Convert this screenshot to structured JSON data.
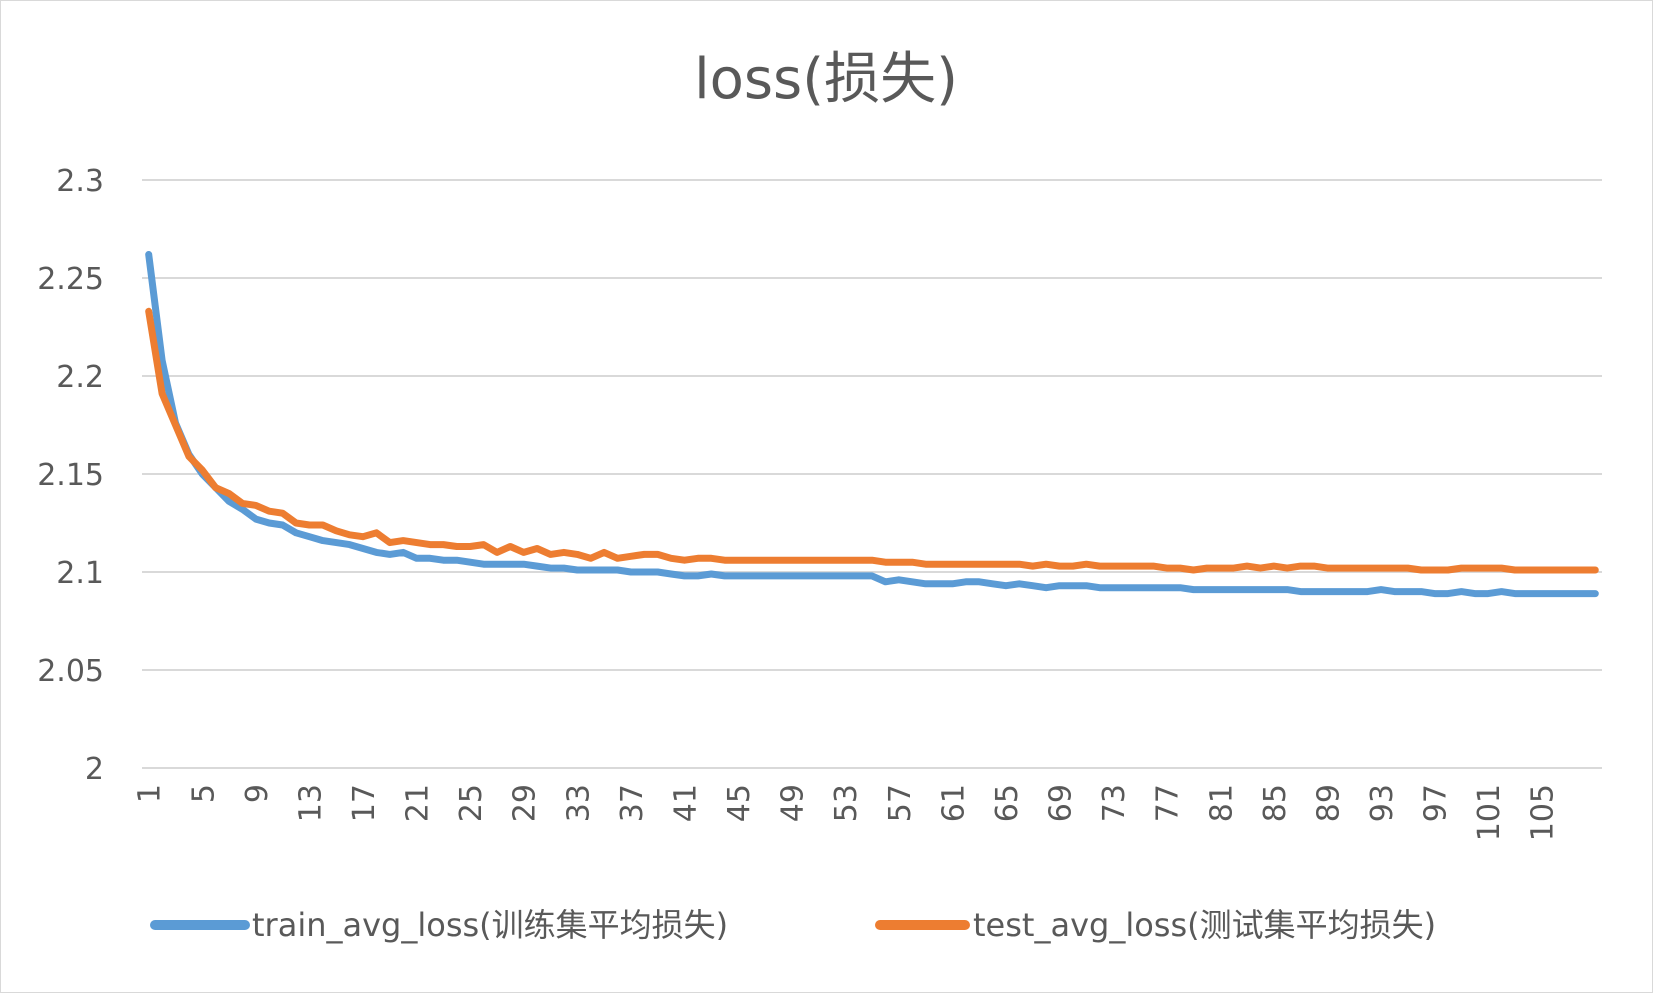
{
  "chart_data": {
    "type": "line",
    "title": "loss(损失)",
    "xlabel": "",
    "ylabel": "",
    "ylim": [
      2,
      2.3
    ],
    "yticks": [
      "2",
      "2.05",
      "2.1",
      "2.15",
      "2.2",
      "2.25",
      "2.3"
    ],
    "x_tick_labels": [
      "1",
      "5",
      "9",
      "13",
      "17",
      "21",
      "25",
      "29",
      "33",
      "37",
      "41",
      "45",
      "49",
      "53",
      "57",
      "61",
      "65",
      "69",
      "73",
      "77",
      "81",
      "85",
      "89",
      "93",
      "97",
      "101",
      "105"
    ],
    "grid": true,
    "legend_position": "bottom",
    "colors": {
      "train": "#5b9bd5",
      "test": "#ed7d31",
      "grid": "#d9d9d9",
      "text": "#595959"
    },
    "series": [
      {
        "name": "train_avg_loss(训练集平均损失)",
        "color": "#5b9bd5",
        "values": [
          2.262,
          2.208,
          2.176,
          2.16,
          2.15,
          2.143,
          2.136,
          2.132,
          2.127,
          2.125,
          2.124,
          2.12,
          2.118,
          2.116,
          2.115,
          2.114,
          2.112,
          2.11,
          2.109,
          2.11,
          2.107,
          2.107,
          2.106,
          2.106,
          2.105,
          2.104,
          2.104,
          2.104,
          2.104,
          2.103,
          2.102,
          2.102,
          2.101,
          2.101,
          2.101,
          2.101,
          2.1,
          2.1,
          2.1,
          2.099,
          2.098,
          2.098,
          2.099,
          2.098,
          2.098,
          2.098,
          2.098,
          2.098,
          2.098,
          2.098,
          2.098,
          2.098,
          2.098,
          2.098,
          2.098,
          2.095,
          2.096,
          2.095,
          2.094,
          2.094,
          2.094,
          2.095,
          2.095,
          2.094,
          2.093,
          2.094,
          2.093,
          2.092,
          2.093,
          2.093,
          2.093,
          2.092,
          2.092,
          2.092,
          2.092,
          2.092,
          2.092,
          2.092,
          2.091,
          2.091,
          2.091,
          2.091,
          2.091,
          2.091,
          2.091,
          2.091,
          2.09,
          2.09,
          2.09,
          2.09,
          2.09,
          2.09,
          2.091,
          2.09,
          2.09,
          2.09,
          2.089,
          2.089,
          2.09,
          2.089,
          2.089,
          2.09,
          2.089,
          2.089,
          2.089,
          2.089,
          2.089,
          2.089,
          2.089
        ]
      },
      {
        "name": "test_avg_loss(测试集平均损失)",
        "color": "#ed7d31",
        "values": [
          2.233,
          2.191,
          2.175,
          2.159,
          2.152,
          2.143,
          2.14,
          2.135,
          2.134,
          2.131,
          2.13,
          2.125,
          2.124,
          2.124,
          2.121,
          2.119,
          2.118,
          2.12,
          2.115,
          2.116,
          2.115,
          2.114,
          2.114,
          2.113,
          2.113,
          2.114,
          2.11,
          2.113,
          2.11,
          2.112,
          2.109,
          2.11,
          2.109,
          2.107,
          2.11,
          2.107,
          2.108,
          2.109,
          2.109,
          2.107,
          2.106,
          2.107,
          2.107,
          2.106,
          2.106,
          2.106,
          2.106,
          2.106,
          2.106,
          2.106,
          2.106,
          2.106,
          2.106,
          2.106,
          2.106,
          2.105,
          2.105,
          2.105,
          2.104,
          2.104,
          2.104,
          2.104,
          2.104,
          2.104,
          2.104,
          2.104,
          2.103,
          2.104,
          2.103,
          2.103,
          2.104,
          2.103,
          2.103,
          2.103,
          2.103,
          2.103,
          2.102,
          2.102,
          2.101,
          2.102,
          2.102,
          2.102,
          2.103,
          2.102,
          2.103,
          2.102,
          2.103,
          2.103,
          2.102,
          2.102,
          2.102,
          2.102,
          2.102,
          2.102,
          2.102,
          2.101,
          2.101,
          2.101,
          2.102,
          2.102,
          2.102,
          2.102,
          2.101,
          2.101,
          2.101,
          2.101,
          2.101,
          2.101,
          2.101
        ]
      }
    ]
  }
}
